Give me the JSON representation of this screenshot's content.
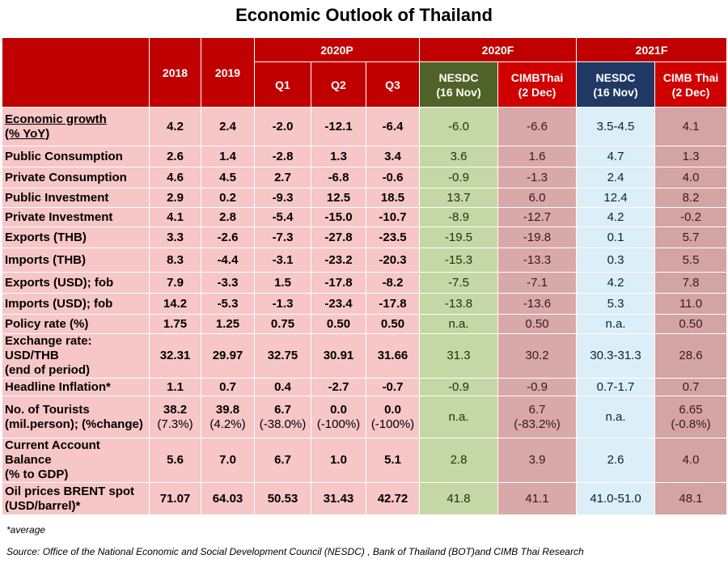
{
  "title": "Economic Outlook of Thailand",
  "note": "*average",
  "source": "Source: Office of the National Economic and Social Development Council (NESDC) , Bank of Thailand (BOT)and  CIMB Thai Research",
  "header": {
    "y2018": "2018",
    "y2019": "2019",
    "p2020": "2020P",
    "f2020": "2020F",
    "f2021": "2021F",
    "q1": "Q1",
    "q2": "Q2",
    "q3": "Q3",
    "nesdc_a": "NESDC",
    "nesdc_a_date": "(16 Nov)",
    "cimb_a": "CIMBThai",
    "cimb_a_date": "(2 Dec)",
    "nesdc_b": "NESDC",
    "nesdc_b_date": "(16 Nov)",
    "cimb_b": "CIMB Thai",
    "cimb_b_date": "(2 Dec)"
  },
  "chart_data": {
    "type": "table",
    "title": "Economic Outlook of Thailand",
    "columns": [
      "2018",
      "2019",
      "2020P Q1",
      "2020P Q2",
      "2020P Q3",
      "2020F NESDC (16 Nov)",
      "2020F CIMBThai (2 Dec)",
      "2021F NESDC (16 Nov)",
      "2021F CIMB Thai (2 Dec)"
    ],
    "rows": [
      {
        "label": [
          "Economic growth",
          "(% YoY)"
        ],
        "values": [
          [
            "4.2"
          ],
          [
            "2.4"
          ],
          [
            "-2.0"
          ],
          [
            "-12.1"
          ],
          [
            "-6.4"
          ],
          [
            "-6.0"
          ],
          [
            "-6.6"
          ],
          [
            "3.5-4.5"
          ],
          [
            "4.1"
          ]
        ]
      },
      {
        "label": [
          "Public Consumption"
        ],
        "values": [
          [
            "2.6"
          ],
          [
            "1.4"
          ],
          [
            "-2.8"
          ],
          [
            "1.3"
          ],
          [
            "3.4"
          ],
          [
            "3.6"
          ],
          [
            "1.6"
          ],
          [
            "4.7"
          ],
          [
            "1.3"
          ]
        ]
      },
      {
        "label": [
          "Private Consumption"
        ],
        "values": [
          [
            "4.6"
          ],
          [
            "4.5"
          ],
          [
            "2.7"
          ],
          [
            "-6.8"
          ],
          [
            "-0.6"
          ],
          [
            "-0.9"
          ],
          [
            "-1.3"
          ],
          [
            "2.4"
          ],
          [
            "4.0"
          ]
        ]
      },
      {
        "label": [
          "Public Investment"
        ],
        "values": [
          [
            "2.9"
          ],
          [
            "0.2"
          ],
          [
            "-9.3"
          ],
          [
            "12.5"
          ],
          [
            "18.5"
          ],
          [
            "13.7"
          ],
          [
            "6.0"
          ],
          [
            "12.4"
          ],
          [
            "8.2"
          ]
        ]
      },
      {
        "label": [
          "Private Investment"
        ],
        "values": [
          [
            "4.1"
          ],
          [
            "2.8"
          ],
          [
            "-5.4"
          ],
          [
            "-15.0"
          ],
          [
            "-10.7"
          ],
          [
            "-8.9"
          ],
          [
            "-12.7"
          ],
          [
            "4.2"
          ],
          [
            "-0.2"
          ]
        ]
      },
      {
        "label": [
          "Exports (THB)"
        ],
        "values": [
          [
            "3.3"
          ],
          [
            "-2.6"
          ],
          [
            "-7.3"
          ],
          [
            "-27.8"
          ],
          [
            "-23.5"
          ],
          [
            "-19.5"
          ],
          [
            "-19.8"
          ],
          [
            "0.1"
          ],
          [
            "5.7"
          ]
        ]
      },
      {
        "label": [
          "Imports (THB)"
        ],
        "values": [
          [
            "8.3"
          ],
          [
            "-4.4"
          ],
          [
            "-3.1"
          ],
          [
            "-23.2"
          ],
          [
            "-20.3"
          ],
          [
            "-15.3"
          ],
          [
            "-13.3"
          ],
          [
            "0.3"
          ],
          [
            "5.5"
          ]
        ]
      },
      {
        "label": [
          "Exports (USD); fob"
        ],
        "values": [
          [
            "7.9"
          ],
          [
            "-3.3"
          ],
          [
            "1.5"
          ],
          [
            "-17.8"
          ],
          [
            "-8.2"
          ],
          [
            "-7.5"
          ],
          [
            "-7.1"
          ],
          [
            "4.2"
          ],
          [
            "7.8"
          ]
        ]
      },
      {
        "label": [
          "Imports (USD); fob"
        ],
        "values": [
          [
            "14.2"
          ],
          [
            "-5.3"
          ],
          [
            "-1.3"
          ],
          [
            "-23.4"
          ],
          [
            "-17.8"
          ],
          [
            "-13.8"
          ],
          [
            "-13.6"
          ],
          [
            "5.3"
          ],
          [
            "11.0"
          ]
        ]
      },
      {
        "label": [
          "Policy rate (%)"
        ],
        "values": [
          [
            "1.75"
          ],
          [
            "1.25"
          ],
          [
            "0.75"
          ],
          [
            "0.50"
          ],
          [
            "0.50"
          ],
          [
            "n.a."
          ],
          [
            "0.50"
          ],
          [
            "n.a."
          ],
          [
            "0.50"
          ]
        ]
      },
      {
        "label": [
          "Exchange rate: USD/THB",
          "(end of period)"
        ],
        "values": [
          [
            "32.31"
          ],
          [
            "29.97"
          ],
          [
            "32.75"
          ],
          [
            "30.91"
          ],
          [
            "31.66"
          ],
          [
            "31.3"
          ],
          [
            "30.2"
          ],
          [
            "30.3-31.3"
          ],
          [
            "28.6"
          ]
        ]
      },
      {
        "label": [
          "Headline Inflation*"
        ],
        "values": [
          [
            "1.1"
          ],
          [
            "0.7"
          ],
          [
            "0.4"
          ],
          [
            "-2.7"
          ],
          [
            "-0.7"
          ],
          [
            "-0.9"
          ],
          [
            "-0.9"
          ],
          [
            "0.7-1.7"
          ],
          [
            "0.7"
          ]
        ]
      },
      {
        "label": [
          "No. of Tourists",
          "(mil.person); (%change)"
        ],
        "values": [
          [
            "38.2",
            "(7.3%)"
          ],
          [
            "39.8",
            "(4.2%)"
          ],
          [
            "6.7",
            "(-38.0%)"
          ],
          [
            "0.0",
            "(-100%)"
          ],
          [
            "0.0",
            "(-100%)"
          ],
          [
            "n.a."
          ],
          [
            "6.7",
            "(-83.2%)"
          ],
          [
            "n.a."
          ],
          [
            "6.65",
            "(-0.8%)"
          ]
        ]
      },
      {
        "label": [
          "Current Account Balance",
          "(% to GDP)"
        ],
        "values": [
          [
            "5.6"
          ],
          [
            "7.0"
          ],
          [
            "6.7"
          ],
          [
            "1.0"
          ],
          [
            "5.1"
          ],
          [
            "2.8"
          ],
          [
            "3.9"
          ],
          [
            "2.6"
          ],
          [
            "4.0"
          ]
        ]
      },
      {
        "label": [
          "Oil prices BRENT spot",
          "(USD/barrel)*"
        ],
        "values": [
          [
            "71.07"
          ],
          [
            "64.03"
          ],
          [
            "50.53"
          ],
          [
            "31.43"
          ],
          [
            "42.72"
          ],
          [
            "41.8"
          ],
          [
            "41.1"
          ],
          [
            "41.0-51.0"
          ],
          [
            "48.1"
          ]
        ]
      }
    ]
  }
}
